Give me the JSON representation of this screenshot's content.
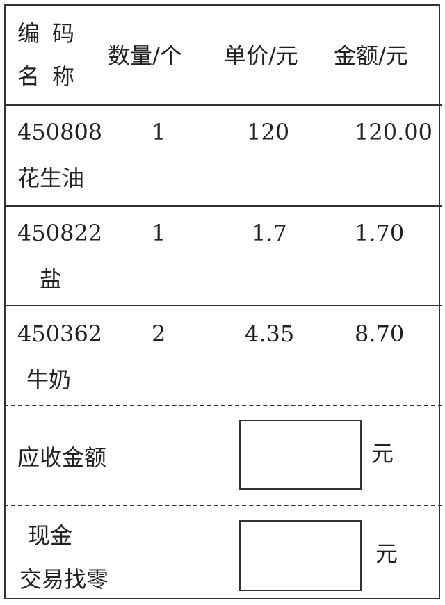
{
  "header": {
    "code_label": "编码",
    "name_label": "名称",
    "quantity_label": "数量/个",
    "unit_price_label": "单价/元",
    "amount_label": "金额/元"
  },
  "items": [
    {
      "code": "450808",
      "name": "花生油",
      "quantity": "1",
      "unit_price": "120",
      "amount": "120.00"
    },
    {
      "code": "450822",
      "name": "盐",
      "quantity": "1",
      "unit_price": "1.7",
      "amount": "1.70"
    },
    {
      "code": "450362",
      "name": "牛奶",
      "quantity": "2",
      "unit_price": "4.35",
      "amount": "8.70"
    }
  ],
  "receivable": {
    "label": "应收金额",
    "value": "",
    "unit": "元"
  },
  "change": {
    "label_line1": "现金",
    "label_line2": "交易找零",
    "value": "",
    "unit": "元"
  }
}
